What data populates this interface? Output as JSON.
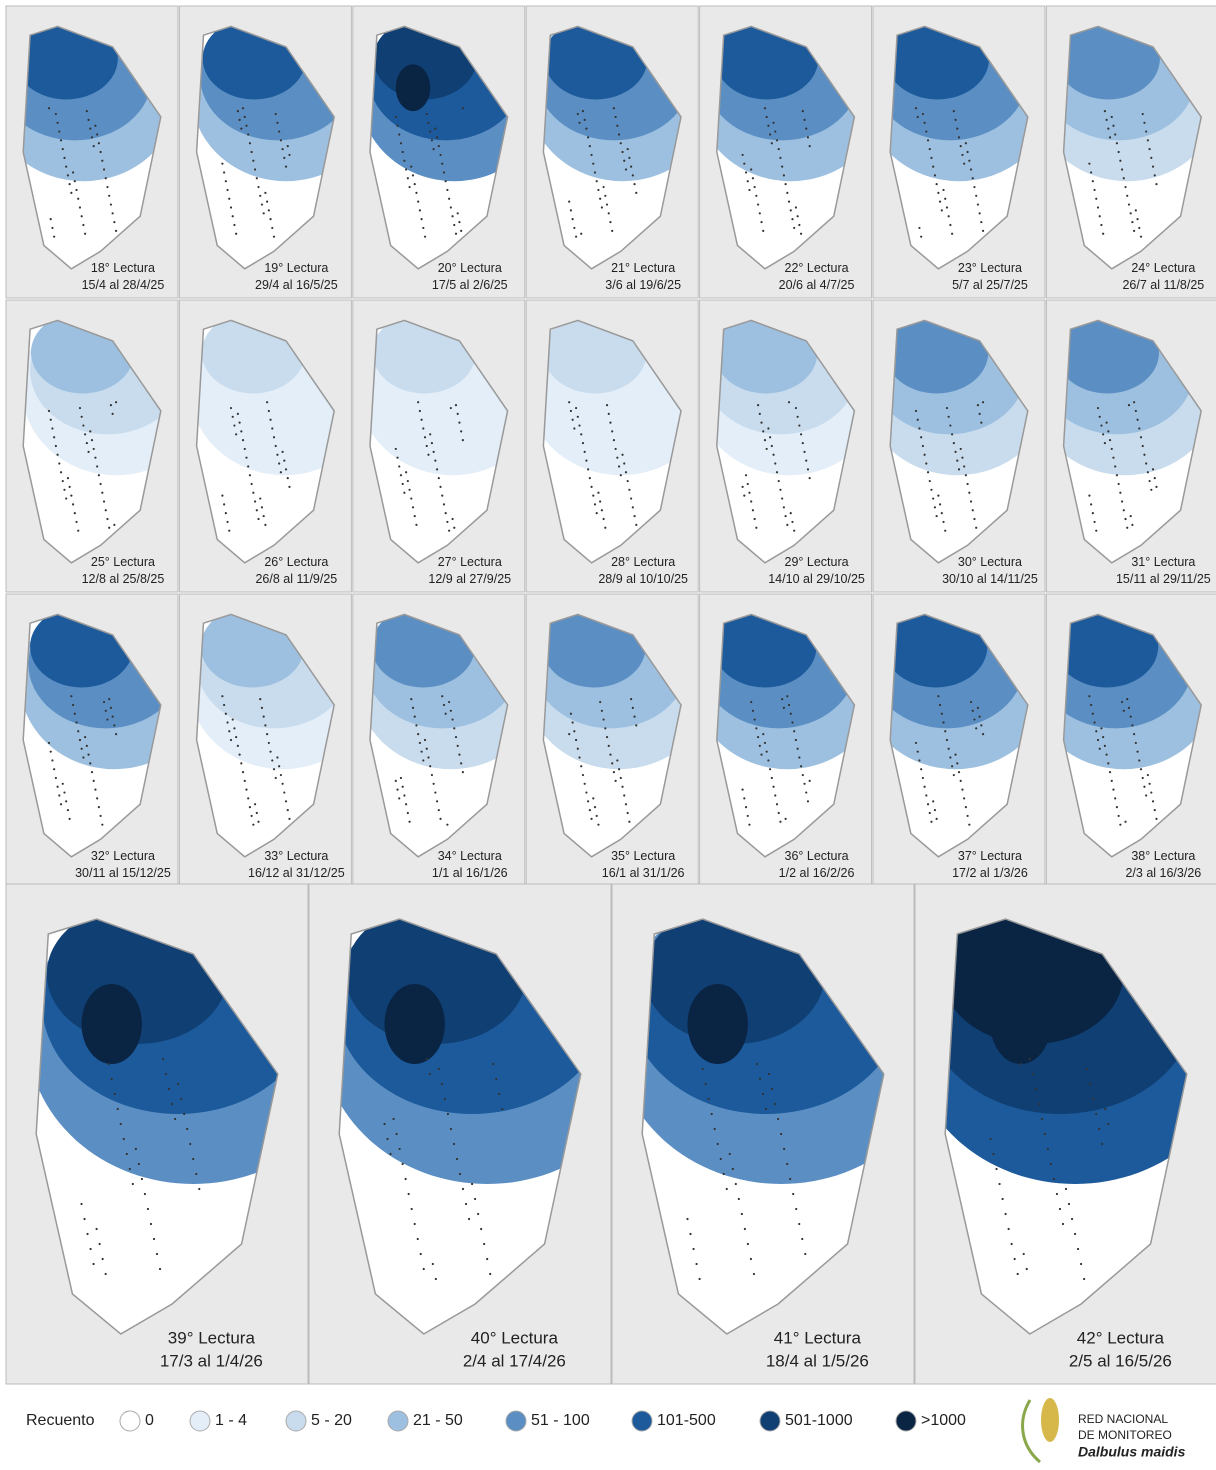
{
  "panels": [
    {
      "title": "18° Lectura",
      "dates": "15/4 al 28/4/25"
    },
    {
      "title": "19° Lectura",
      "dates": "29/4 al 16/5/25"
    },
    {
      "title": "20° Lectura",
      "dates": "17/5 al 2/6/25"
    },
    {
      "title": "21° Lectura",
      "dates": "3/6 al 19/6/25"
    },
    {
      "title": "22° Lectura",
      "dates": "20/6 al 4/7/25"
    },
    {
      "title": "23° Lectura",
      "dates": "5/7 al 25/7/25"
    },
    {
      "title": "24° Lectura",
      "dates": "26/7 al 11/8/25"
    },
    {
      "title": "25° Lectura",
      "dates": "12/8 al 25/8/25"
    },
    {
      "title": "26° Lectura",
      "dates": "26/8 al 11/9/25"
    },
    {
      "title": "27° Lectura",
      "dates": "12/9 al 27/9/25"
    },
    {
      "title": "28° Lectura",
      "dates": "28/9 al 10/10/25"
    },
    {
      "title": "29° Lectura",
      "dates": "14/10 al 29/10/25"
    },
    {
      "title": "30° Lectura",
      "dates": "30/10 al 14/11/25"
    },
    {
      "title": "31° Lectura",
      "dates": "15/11 al 29/11/25"
    },
    {
      "title": "32° Lectura",
      "dates": "30/11 al 15/12/25"
    },
    {
      "title": "33° Lectura",
      "dates": "16/12 al 31/12/25"
    },
    {
      "title": "34° Lectura",
      "dates": "1/1 al 16/1/26"
    },
    {
      "title": "35° Lectura",
      "dates": "16/1 al 31/1/26"
    },
    {
      "title": "36° Lectura",
      "dates": "1/2 al 16/2/26"
    },
    {
      "title": "37° Lectura",
      "dates": "17/2 al 1/3/26"
    },
    {
      "title": "38° Lectura",
      "dates": "2/3 al 16/3/26"
    },
    {
      "title": "39° Lectura",
      "dates": "17/3 al 1/4/26"
    },
    {
      "title": "40° Lectura",
      "dates": "2/4 al 17/4/26"
    },
    {
      "title": "41° Lectura",
      "dates": "18/4 al 1/5/26"
    },
    {
      "title": "42° Lectura",
      "dates": "2/5 al 16/5/26"
    }
  ],
  "legend": {
    "title": "Recuento",
    "items": [
      {
        "label": "0",
        "color": "#ffffff"
      },
      {
        "label": "1 - 4",
        "color": "#e3eef8"
      },
      {
        "label": "5 - 20",
        "color": "#c9dcee"
      },
      {
        "label": "21 - 50",
        "color": "#9dc0e0"
      },
      {
        "label": "51 - 100",
        "color": "#5b8fc4"
      },
      {
        "label": "101-500",
        "color": "#1c5a9c"
      },
      {
        "label": "501-1000",
        "color": "#0f3f73"
      },
      {
        "label": ">1000",
        "color": "#0a2444"
      }
    ]
  },
  "logo": {
    "line1": "RED NACIONAL",
    "line2": "DE MONITOREO",
    "line3": "Dalbulus maidis"
  }
}
